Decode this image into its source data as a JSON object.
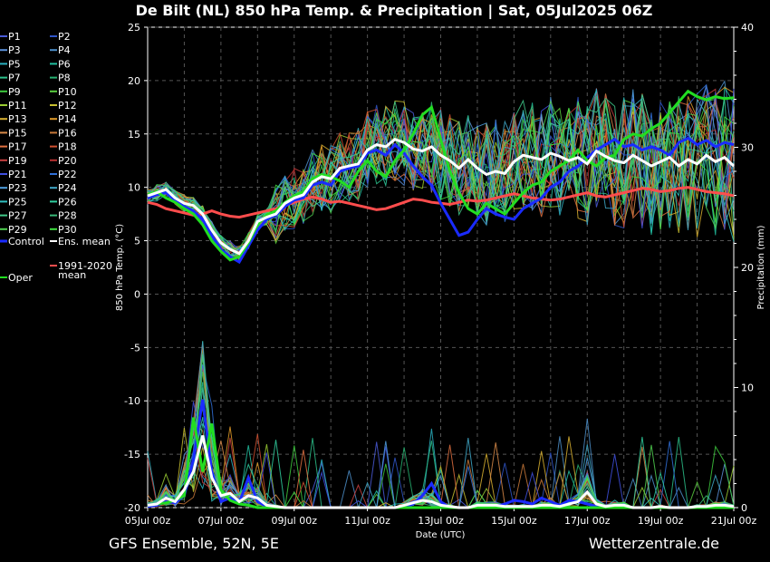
{
  "chart_data": {
    "type": "line",
    "title": "De Bilt  (NL)  850 hPa Temp. & Precipitation | Sat, 05Jul2025 06Z",
    "ylabel": "850 hPa Temp. (°C)",
    "y2label": "Precipitation (mm)",
    "xlabel": "Date (UTC)",
    "ylim": [
      -20,
      25
    ],
    "y2lim": [
      0,
      40
    ],
    "yticks": [
      "25",
      "20",
      "15",
      "10",
      "5",
      "0",
      "-5",
      "-10",
      "-15",
      "-20"
    ],
    "y2ticks": [
      "40",
      "30",
      "20",
      "10",
      "0"
    ],
    "xticks": [
      "05Jul 00z",
      "07Jul 00z",
      "09Jul 00z",
      "11Jul 00z",
      "13Jul 00z",
      "15Jul 00z",
      "17Jul 00z",
      "19Jul 00z",
      "21Jul 00z"
    ],
    "grid": true,
    "footer_left": "GFS Ensemble, 52N, 5E",
    "footer_right": "Wetterzentrale.de",
    "legend": [
      {
        "name": "P1",
        "color": "#4a5bd8"
      },
      {
        "name": "P2",
        "color": "#2f55c8"
      },
      {
        "name": "P3",
        "color": "#5b8fd8"
      },
      {
        "name": "P4",
        "color": "#4c8ec8"
      },
      {
        "name": "P5",
        "color": "#2ab0c0"
      },
      {
        "name": "P6",
        "color": "#22c0a0"
      },
      {
        "name": "P7",
        "color": "#2cc08a"
      },
      {
        "name": "P8",
        "color": "#26b070"
      },
      {
        "name": "P9",
        "color": "#3ecb3e"
      },
      {
        "name": "P10",
        "color": "#5ad040"
      },
      {
        "name": "P11",
        "color": "#9acd32"
      },
      {
        "name": "P12",
        "color": "#c8c030"
      },
      {
        "name": "P13",
        "color": "#d8b030"
      },
      {
        "name": "P14",
        "color": "#e09a28"
      },
      {
        "name": "P15",
        "color": "#d88a48"
      },
      {
        "name": "P16",
        "color": "#c87838"
      },
      {
        "name": "P17",
        "color": "#e07040"
      },
      {
        "name": "P18",
        "color": "#d05030"
      },
      {
        "name": "P19",
        "color": "#c84040"
      },
      {
        "name": "P20",
        "color": "#b83030"
      },
      {
        "name": "P21",
        "color": "#4050e0"
      },
      {
        "name": "P22",
        "color": "#3070d8"
      },
      {
        "name": "P23",
        "color": "#50a0e0"
      },
      {
        "name": "P24",
        "color": "#40a8c8"
      },
      {
        "name": "P25",
        "color": "#30c0c0"
      },
      {
        "name": "P26",
        "color": "#30d0a0"
      },
      {
        "name": "P27",
        "color": "#40c888"
      },
      {
        "name": "P28",
        "color": "#38b878"
      },
      {
        "name": "P29",
        "color": "#50d050"
      },
      {
        "name": "P30",
        "color": "#40e040"
      },
      {
        "name": "Control",
        "color": "#1a2bff"
      },
      {
        "name": "Ens. mean",
        "color": "#ffffff"
      },
      {
        "name": "Oper",
        "color": "#22dd22"
      },
      {
        "name": "1991-2020 mean",
        "color": "#ff4d4d"
      }
    ],
    "x_days": [
      0,
      0.25,
      0.5,
      0.75,
      1,
      1.25,
      1.5,
      1.75,
      2,
      2.25,
      2.5,
      2.75,
      3,
      3.25,
      3.5,
      3.75,
      4,
      4.25,
      4.5,
      4.75,
      5,
      5.25,
      5.5,
      5.75,
      6,
      6.25,
      6.5,
      6.75,
      7,
      7.25,
      7.5,
      7.75,
      8,
      8.25,
      8.5,
      8.75,
      9,
      9.25,
      9.5,
      9.75,
      10,
      10.25,
      10.5,
      10.75,
      11,
      11.25,
      11.5,
      11.75,
      12,
      12.25,
      12.5,
      12.75,
      13,
      13.25,
      13.5,
      13.75,
      14,
      14.25,
      14.5,
      14.75,
      15,
      15.25,
      15.5,
      15.75,
      16
    ],
    "temp_series": [
      {
        "name": "Ens. mean",
        "values": [
          9.2,
          9.5,
          9.8,
          9.0,
          8.5,
          8.3,
          7.5,
          6.0,
          4.8,
          4.2,
          3.8,
          5.0,
          6.8,
          7.2,
          7.5,
          8.5,
          9.0,
          9.3,
          10.5,
          11.0,
          10.8,
          11.8,
          12.0,
          12.2,
          13.5,
          14.0,
          13.8,
          14.5,
          14.2,
          13.6,
          13.4,
          13.8,
          13.0,
          12.5,
          11.8,
          12.6,
          11.8,
          11.2,
          11.5,
          11.3,
          12.4,
          13.0,
          12.8,
          12.6,
          13.2,
          12.9,
          12.5,
          12.8,
          12.2,
          13.4,
          12.9,
          12.5,
          12.3,
          13.0,
          12.5,
          12.0,
          12.4,
          12.8,
          12.0,
          12.6,
          12.2,
          13.0,
          12.4,
          12.8,
          12.0
        ]
      },
      {
        "name": "Control",
        "values": [
          9.0,
          9.3,
          9.5,
          8.8,
          8.2,
          7.8,
          7.0,
          5.5,
          4.2,
          3.5,
          3.0,
          4.5,
          6.0,
          7.0,
          7.4,
          8.2,
          8.8,
          9.0,
          10.2,
          10.5,
          10.2,
          11.5,
          11.8,
          12.0,
          13.2,
          13.5,
          13.0,
          14.0,
          13.2,
          12.0,
          11.0,
          10.2,
          8.5,
          7.0,
          5.5,
          5.8,
          7.0,
          8.0,
          7.5,
          7.2,
          7.0,
          8.0,
          8.5,
          9.0,
          10.0,
          10.5,
          11.5,
          12.0,
          12.8,
          13.5,
          14.0,
          14.5,
          13.8,
          14.0,
          13.5,
          13.8,
          13.5,
          13.0,
          14.2,
          14.6,
          14.0,
          14.4,
          13.8,
          14.2,
          14.0
        ]
      },
      {
        "name": "Oper",
        "values": [
          9.3,
          9.6,
          9.0,
          8.6,
          8.0,
          7.5,
          6.5,
          5.0,
          4.0,
          3.2,
          3.5,
          4.8,
          6.5,
          7.4,
          7.8,
          8.6,
          9.2,
          9.6,
          10.8,
          11.2,
          11.0,
          10.6,
          10.0,
          11.5,
          12.5,
          11.5,
          11.0,
          12.5,
          13.5,
          15.0,
          16.8,
          17.5,
          14.5,
          11.5,
          9.5,
          8.0,
          7.5,
          8.5,
          8.0,
          7.5,
          8.5,
          9.5,
          10.2,
          10.5,
          11.5,
          12.0,
          12.5,
          13.5,
          12.5,
          12.0,
          12.8,
          13.0,
          14.5,
          15.0,
          14.8,
          15.5,
          16.0,
          17.0,
          18.0,
          19.0,
          18.5,
          18.2,
          18.5,
          18.3,
          18.4
        ]
      },
      {
        "name": "1991-2020 mean",
        "values": [
          8.6,
          8.4,
          8.0,
          7.8,
          7.6,
          7.4,
          7.5,
          7.8,
          7.5,
          7.3,
          7.2,
          7.4,
          7.6,
          7.8,
          8.0,
          8.3,
          8.6,
          8.9,
          9.1,
          8.9,
          8.6,
          8.7,
          8.5,
          8.3,
          8.1,
          7.9,
          8.0,
          8.3,
          8.6,
          8.9,
          8.8,
          8.6,
          8.5,
          8.4,
          8.6,
          8.8,
          8.7,
          8.8,
          9.0,
          9.2,
          9.4,
          9.2,
          9.0,
          8.9,
          8.8,
          8.9,
          9.1,
          9.3,
          9.5,
          9.2,
          9.1,
          9.3,
          9.5,
          9.7,
          9.9,
          9.8,
          9.6,
          9.7,
          9.9,
          10.0,
          9.8,
          9.6,
          9.5,
          9.4,
          9.2
        ]
      }
    ],
    "precip_series": [
      {
        "name": "Ens. mean",
        "values": [
          0.2,
          0.3,
          0.8,
          0.5,
          1.5,
          3.0,
          6.0,
          2.5,
          1.0,
          1.2,
          0.5,
          1.0,
          0.8,
          0.2,
          0.1,
          0,
          0,
          0,
          0,
          0,
          0,
          0,
          0,
          0,
          0,
          0,
          0,
          0,
          0.2,
          0.4,
          0.6,
          0.5,
          0.2,
          0.1,
          0,
          0,
          0.2,
          0.2,
          0.2,
          0.1,
          0.1,
          0.1,
          0.1,
          0.2,
          0.2,
          0.1,
          0.3,
          0.5,
          1.3,
          0.3,
          0.1,
          0.2,
          0.2,
          0,
          0,
          0,
          0.1,
          0,
          0,
          0,
          0.1,
          0.1,
          0.2,
          0.2,
          0.1
        ]
      },
      {
        "name": "Control",
        "values": [
          0.1,
          0.2,
          0.5,
          0.4,
          1.0,
          4.0,
          9.0,
          3.0,
          0.5,
          0.8,
          0.4,
          2.5,
          0.5,
          0.1,
          0,
          0,
          0,
          0,
          0,
          0,
          0,
          0,
          0,
          0,
          0,
          0,
          0,
          0,
          0,
          0.3,
          1.0,
          2.0,
          0.5,
          0,
          0,
          0,
          0.1,
          0,
          0.1,
          0.3,
          0.6,
          0.5,
          0.3,
          0.8,
          0.5,
          0.2,
          0.6,
          0.5,
          0.3,
          0.1,
          0,
          0,
          0,
          0,
          0,
          0,
          0,
          0,
          0,
          0,
          0,
          0,
          0,
          0,
          0
        ]
      },
      {
        "name": "Oper",
        "values": [
          0.2,
          0.3,
          0.4,
          0.6,
          1.0,
          7.5,
          3.0,
          7.0,
          1.5,
          0.6,
          0.3,
          0.2,
          0,
          0,
          0,
          0,
          0,
          0,
          0,
          0,
          0,
          0,
          0,
          0,
          0,
          0,
          0,
          0,
          0,
          0,
          0,
          0,
          0,
          0,
          0,
          0,
          0,
          0,
          0,
          0,
          0,
          0,
          0,
          0,
          0,
          0,
          0,
          0,
          0,
          0,
          0,
          0,
          0,
          0,
          0,
          0,
          0,
          0,
          0,
          0,
          0,
          0,
          0,
          0,
          0
        ]
      }
    ]
  }
}
